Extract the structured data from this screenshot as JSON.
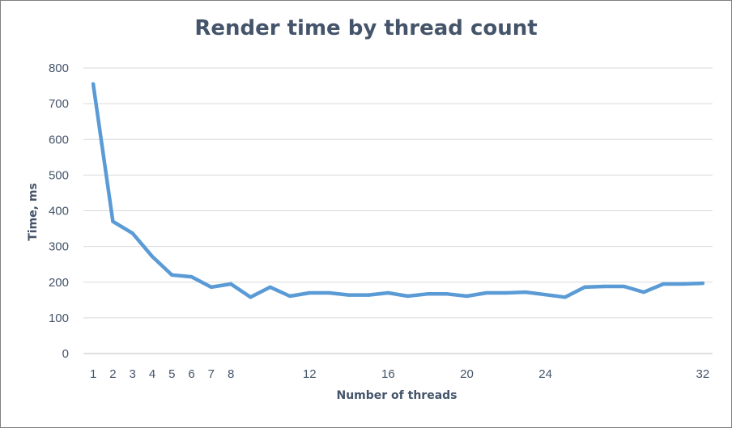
{
  "chart_data": {
    "type": "line",
    "title": "Render time by thread count",
    "xlabel": "Number of threads",
    "ylabel": "Time, ms",
    "x": [
      1,
      2,
      3,
      4,
      5,
      6,
      7,
      8,
      9,
      10,
      11,
      12,
      13,
      14,
      15,
      16,
      17,
      18,
      19,
      20,
      21,
      22,
      23,
      24,
      25,
      26,
      27,
      28,
      29,
      30,
      31,
      32
    ],
    "series": [
      {
        "values": [
          755,
          370,
          337,
          272,
          220,
          215,
          186,
          195,
          158,
          186,
          161,
          170,
          170,
          164,
          164,
          170,
          161,
          167,
          167,
          161,
          170,
          170,
          172,
          165,
          158,
          186,
          188,
          188,
          172,
          195,
          195,
          197
        ],
        "color": "#5b9bd5"
      }
    ],
    "xticks": [
      1,
      2,
      3,
      4,
      5,
      6,
      7,
      8,
      12,
      16,
      20,
      24,
      32
    ],
    "xlim": [
      0.5,
      32.5
    ],
    "yticks": [
      0,
      100,
      200,
      300,
      400,
      500,
      600,
      700,
      800
    ],
    "ylim": [
      0,
      800
    ],
    "grid": "horizontal",
    "gridColor": "#d9d9d9",
    "legend": "none"
  }
}
